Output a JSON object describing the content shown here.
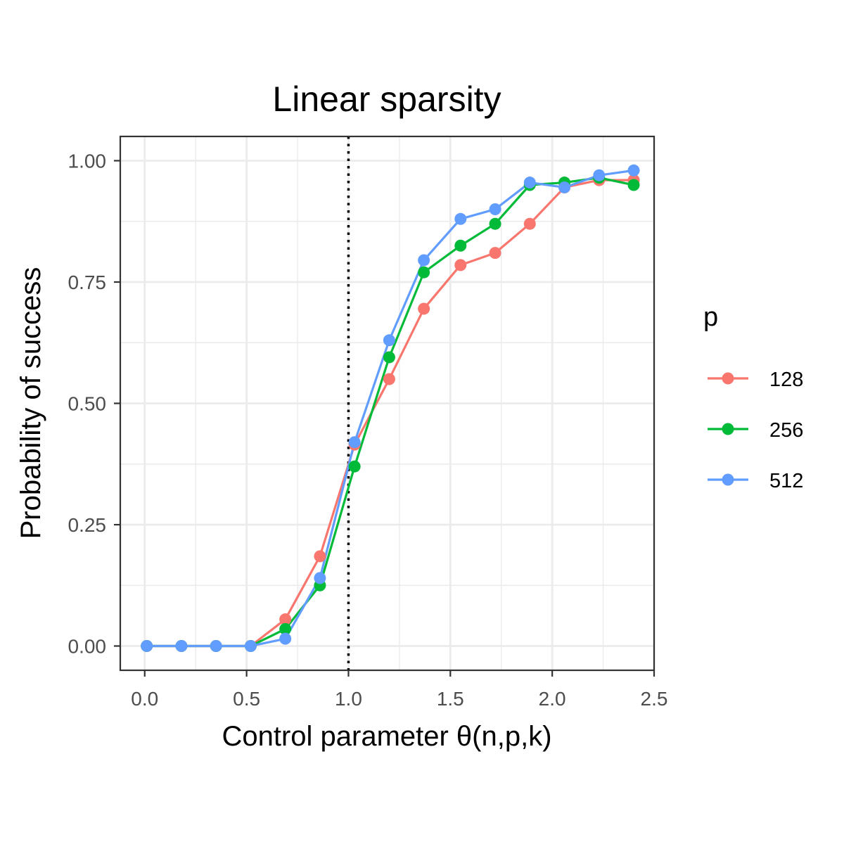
{
  "chart_data": {
    "type": "line",
    "title": "Linear sparsity",
    "xlabel": "Control parameter θ(n,p,k)",
    "ylabel": "Probability of success",
    "xlim": [
      -0.12,
      2.5
    ],
    "ylim": [
      -0.05,
      1.05
    ],
    "x_ticks": [
      0.0,
      0.5,
      1.0,
      1.5,
      2.0,
      2.5
    ],
    "x_tick_labels": [
      "0.0",
      "0.5",
      "1.0",
      "1.5",
      "2.0",
      "2.5"
    ],
    "y_ticks": [
      0.0,
      0.25,
      0.5,
      0.75,
      1.0
    ],
    "y_tick_labels": [
      "0.00",
      "0.25",
      "0.50",
      "0.75",
      "1.00"
    ],
    "grid": true,
    "reference_line": {
      "x": 1.0,
      "style": "dotted",
      "color": "#000000"
    },
    "legend": {
      "title": "p",
      "position": "right"
    },
    "x": [
      0.01,
      0.18,
      0.35,
      0.52,
      0.69,
      0.86,
      1.03,
      1.2,
      1.37,
      1.55,
      1.72,
      1.89,
      2.06,
      2.23,
      2.4
    ],
    "series": [
      {
        "name": "128",
        "color": "#F8766D",
        "values": [
          0,
          0,
          0,
          0,
          0.055,
          0.185,
          0.415,
          0.55,
          0.695,
          0.785,
          0.81,
          0.87,
          0.945,
          0.96,
          0.96
        ]
      },
      {
        "name": "256",
        "color": "#00BA38",
        "values": [
          0,
          0,
          0,
          0,
          0.035,
          0.125,
          0.37,
          0.595,
          0.77,
          0.825,
          0.87,
          0.95,
          0.955,
          0.965,
          0.95
        ]
      },
      {
        "name": "512",
        "color": "#619CFF",
        "values": [
          0,
          0,
          0,
          0,
          0.015,
          0.14,
          0.42,
          0.63,
          0.795,
          0.88,
          0.9,
          0.955,
          0.945,
          0.97,
          0.98
        ]
      }
    ]
  }
}
